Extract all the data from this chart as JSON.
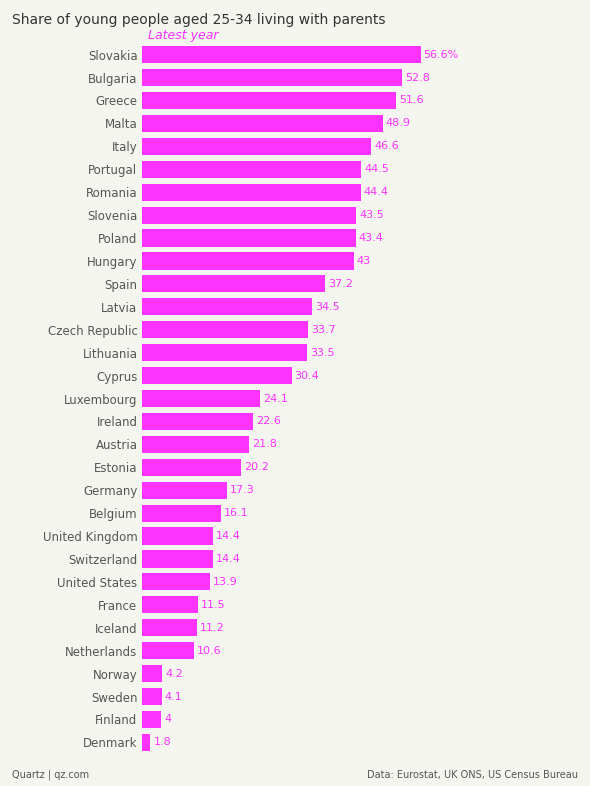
{
  "title": "Share of young people aged 25-34 living with parents",
  "legend_label": "Latest year",
  "bar_color": "#FF33FF",
  "label_color": "#FF33FF",
  "text_color": "#555555",
  "title_color": "#333333",
  "background_color": "#F5F5F0",
  "footer_left": "Quartz | qz.com",
  "footer_right": "Data: Eurostat, UK ONS, US Census Bureau",
  "categories": [
    "Slovakia",
    "Bulgaria",
    "Greece",
    "Malta",
    "Italy",
    "Portugal",
    "Romania",
    "Slovenia",
    "Poland",
    "Hungary",
    "Spain",
    "Latvia",
    "Czech Republic",
    "Lithuania",
    "Cyprus",
    "Luxembourg",
    "Ireland",
    "Austria",
    "Estonia",
    "Germany",
    "Belgium",
    "United Kingdom",
    "Switzerland",
    "United States",
    "France",
    "Iceland",
    "Netherlands",
    "Norway",
    "Sweden",
    "Finland",
    "Denmark"
  ],
  "values": [
    56.6,
    52.8,
    51.6,
    48.9,
    46.6,
    44.5,
    44.4,
    43.5,
    43.4,
    43.0,
    37.2,
    34.5,
    33.7,
    33.5,
    30.4,
    24.1,
    22.6,
    21.8,
    20.2,
    17.3,
    16.1,
    14.4,
    14.4,
    13.9,
    11.5,
    11.2,
    10.6,
    4.2,
    4.1,
    4.0,
    1.8
  ],
  "value_labels": [
    "56.6%",
    "52.8",
    "51.6",
    "48.9",
    "46.6",
    "44.5",
    "44.4",
    "43.5",
    "43.4",
    "43",
    "37.2",
    "34.5",
    "33.7",
    "33.5",
    "30.4",
    "24.1",
    "22.6",
    "21.8",
    "20.2",
    "17.3",
    "16.1",
    "14.4",
    "14.4",
    "13.9",
    "11.5",
    "11.2",
    "10.6",
    "4.2",
    "4.1",
    "4",
    "1.8"
  ]
}
